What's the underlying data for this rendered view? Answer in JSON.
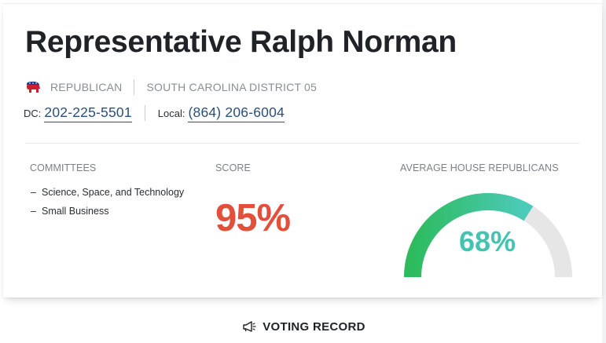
{
  "profile": {
    "name": "Representative Ralph Norman",
    "party": "REPUBLICAN",
    "district": "SOUTH CAROLINA DISTRICT 05",
    "dc_label": "DC:",
    "dc_phone": "202-225-5501",
    "local_label": "Local:",
    "local_phone": "(864) 206-6004"
  },
  "committees": {
    "label": "COMMITTEES",
    "items": [
      "Science, Space, and Technology",
      "Small Business"
    ]
  },
  "score": {
    "label": "SCORE",
    "value": "95%"
  },
  "average": {
    "label": "AVERAGE HOUSE REPUBLICANS",
    "value": "68%",
    "fraction": 0.68
  },
  "voting_record": {
    "label": "VOTING RECORD"
  },
  "colors": {
    "score": "#e24f3a",
    "gauge_start": "#2dbb5d",
    "gauge_end": "#4ccbbd",
    "gauge_track": "#e6e6e6",
    "phone_link": "#2a4f7a"
  },
  "icons": {
    "party": "elephant-icon",
    "voting": "megaphone-icon"
  }
}
